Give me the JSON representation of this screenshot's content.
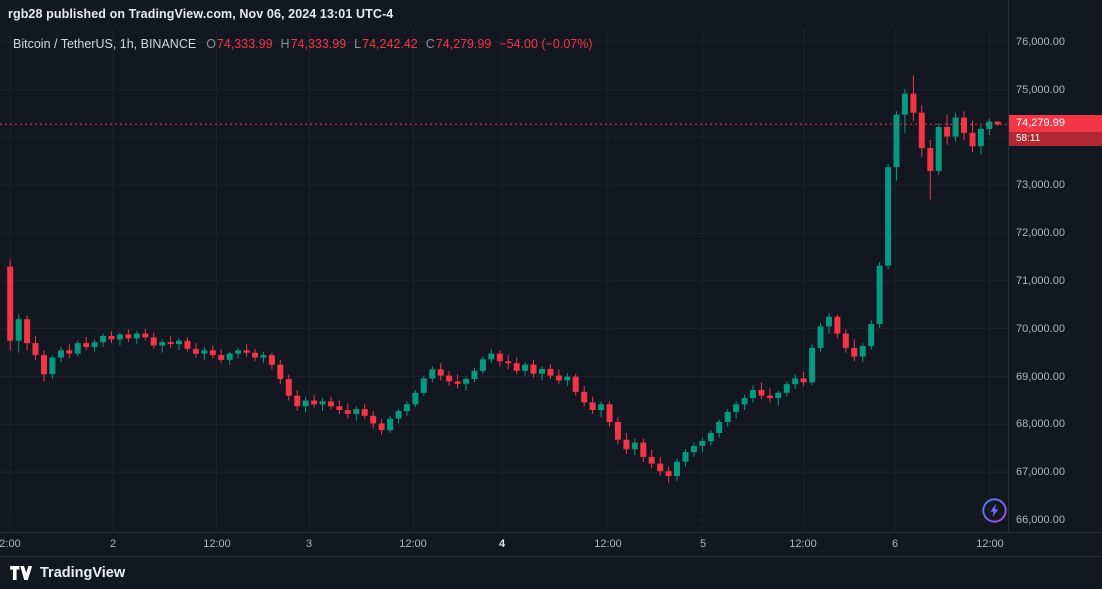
{
  "header": {
    "attribution": "rgb28 published on TradingView.com, Nov 06, 2024 13:01 UTC-4"
  },
  "legend": {
    "symbol": "Bitcoin / TetherUS, 1h, BINANCE",
    "ohlc": [
      {
        "label": "O",
        "value": "74,333.99"
      },
      {
        "label": "H",
        "value": "74,333.99"
      },
      {
        "label": "L",
        "value": "74,242.42"
      },
      {
        "label": "C",
        "value": "74,279.99"
      }
    ],
    "change": "−54.00 (−0.07%)"
  },
  "last_price": {
    "value": "74,279.99",
    "countdown": "58:11",
    "price": 74279.99
  },
  "footer": {
    "brand": "TradingView"
  },
  "colors": {
    "bg": "#131722",
    "up": "#089981",
    "down": "#f23645",
    "grid": "#1e222d",
    "axis_text": "#b2b5be",
    "accent_red": "#f23645"
  },
  "chart_data": {
    "type": "candlestick",
    "title": "Bitcoin / TetherUS, 1h, BINANCE",
    "interval": "1h",
    "exchange": "BINANCE",
    "current_bar": {
      "open": 74333.99,
      "high": 74333.99,
      "low": 74242.42,
      "close": 74279.99,
      "change": -54.0,
      "change_pct": -0.07
    },
    "last_price": 74279.99,
    "ylim": [
      65770,
      76250
    ],
    "y_ticks": [
      {
        "price": 76000,
        "label": "76,000.00"
      },
      {
        "price": 75000,
        "label": "75,000.00"
      },
      {
        "price": 74000,
        "label": "74,000.00"
      },
      {
        "price": 73000,
        "label": "73,000.00"
      },
      {
        "price": 72000,
        "label": "72,000.00"
      },
      {
        "price": 71000,
        "label": "71,000.00"
      },
      {
        "price": 70000,
        "label": "70,000.00"
      },
      {
        "price": 69000,
        "label": "69,000.00"
      },
      {
        "price": 68000,
        "label": "68,000.00"
      },
      {
        "price": 67000,
        "label": "67,000.00"
      },
      {
        "price": 66000,
        "label": "66,000.00"
      }
    ],
    "x_labels": [
      {
        "label": "2:00",
        "fx": 0.01,
        "emph": false
      },
      {
        "label": "2",
        "fx": 0.112,
        "emph": false
      },
      {
        "label": "12:00",
        "fx": 0.215,
        "emph": false
      },
      {
        "label": "3",
        "fx": 0.307,
        "emph": false
      },
      {
        "label": "12:00",
        "fx": 0.41,
        "emph": false
      },
      {
        "label": "4",
        "fx": 0.498,
        "emph": true
      },
      {
        "label": "12:00",
        "fx": 0.603,
        "emph": false
      },
      {
        "label": "5",
        "fx": 0.697,
        "emph": false
      },
      {
        "label": "12:00",
        "fx": 0.797,
        "emph": false
      },
      {
        "label": "6",
        "fx": 0.888,
        "emph": false
      },
      {
        "label": "12:00",
        "fx": 0.982,
        "emph": false
      }
    ],
    "candles": [
      [
        71300,
        71450,
        69550,
        69750
      ],
      [
        69750,
        70300,
        69500,
        70200
      ],
      [
        70200,
        70280,
        69550,
        69700
      ],
      [
        69700,
        69850,
        69350,
        69450
      ],
      [
        69450,
        69550,
        68900,
        69050
      ],
      [
        69050,
        69450,
        68950,
        69400
      ],
      [
        69400,
        69620,
        69300,
        69550
      ],
      [
        69550,
        69680,
        69380,
        69480
      ],
      [
        69480,
        69750,
        69420,
        69700
      ],
      [
        69700,
        69820,
        69550,
        69620
      ],
      [
        69620,
        69780,
        69520,
        69720
      ],
      [
        69720,
        69900,
        69620,
        69850
      ],
      [
        69850,
        69950,
        69700,
        69780
      ],
      [
        69780,
        69920,
        69650,
        69880
      ],
      [
        69880,
        69980,
        69720,
        69800
      ],
      [
        69800,
        69950,
        69680,
        69900
      ],
      [
        69900,
        70000,
        69750,
        69820
      ],
      [
        69820,
        69920,
        69580,
        69650
      ],
      [
        69650,
        69780,
        69500,
        69720
      ],
      [
        69720,
        69850,
        69600,
        69680
      ],
      [
        69680,
        69800,
        69550,
        69750
      ],
      [
        69750,
        69820,
        69520,
        69580
      ],
      [
        69580,
        69700,
        69400,
        69480
      ],
      [
        69480,
        69620,
        69350,
        69550
      ],
      [
        69550,
        69650,
        69380,
        69450
      ],
      [
        69450,
        69580,
        69280,
        69350
      ],
      [
        69350,
        69520,
        69250,
        69480
      ],
      [
        69480,
        69600,
        69380,
        69550
      ],
      [
        69550,
        69680,
        69420,
        69500
      ],
      [
        69500,
        69580,
        69320,
        69400
      ],
      [
        69400,
        69520,
        69280,
        69450
      ],
      [
        69450,
        69500,
        69150,
        69250
      ],
      [
        69250,
        69350,
        68850,
        68950
      ],
      [
        68950,
        69050,
        68500,
        68600
      ],
      [
        68600,
        68720,
        68280,
        68380
      ],
      [
        68380,
        68580,
        68250,
        68500
      ],
      [
        68500,
        68620,
        68350,
        68420
      ],
      [
        68420,
        68550,
        68280,
        68480
      ],
      [
        68480,
        68580,
        68320,
        68380
      ],
      [
        68380,
        68500,
        68220,
        68300
      ],
      [
        68300,
        68440,
        68120,
        68220
      ],
      [
        68220,
        68380,
        68080,
        68320
      ],
      [
        68320,
        68420,
        68120,
        68180
      ],
      [
        68180,
        68280,
        67920,
        68020
      ],
      [
        68020,
        68120,
        67780,
        67880
      ],
      [
        67880,
        68180,
        67820,
        68120
      ],
      [
        68120,
        68320,
        68020,
        68280
      ],
      [
        68280,
        68480,
        68180,
        68420
      ],
      [
        68420,
        68720,
        68360,
        68660
      ],
      [
        68660,
        69020,
        68600,
        68960
      ],
      [
        68960,
        69220,
        68880,
        69150
      ],
      [
        69150,
        69280,
        68920,
        69020
      ],
      [
        69020,
        69120,
        68800,
        68900
      ],
      [
        68900,
        69050,
        68750,
        68850
      ],
      [
        68850,
        69000,
        68700,
        68950
      ],
      [
        68950,
        69180,
        68880,
        69120
      ],
      [
        69120,
        69420,
        69060,
        69360
      ],
      [
        69360,
        69580,
        69280,
        69480
      ],
      [
        69480,
        69550,
        69220,
        69320
      ],
      [
        69320,
        69450,
        69150,
        69280
      ],
      [
        69280,
        69400,
        69050,
        69120
      ],
      [
        69120,
        69300,
        69020,
        69250
      ],
      [
        69250,
        69350,
        68980,
        69060
      ],
      [
        69060,
        69220,
        68920,
        69160
      ],
      [
        69160,
        69260,
        68950,
        69020
      ],
      [
        69020,
        69150,
        68850,
        68920
      ],
      [
        68920,
        69080,
        68800,
        69000
      ],
      [
        69000,
        69060,
        68600,
        68680
      ],
      [
        68680,
        68800,
        68380,
        68460
      ],
      [
        68460,
        68580,
        68220,
        68300
      ],
      [
        68300,
        68480,
        68150,
        68420
      ],
      [
        68420,
        68480,
        67950,
        68050
      ],
      [
        68050,
        68150,
        67580,
        67680
      ],
      [
        67680,
        67820,
        67380,
        67480
      ],
      [
        67480,
        67700,
        67350,
        67620
      ],
      [
        67620,
        67700,
        67220,
        67320
      ],
      [
        67320,
        67480,
        67080,
        67180
      ],
      [
        67180,
        67320,
        66920,
        67020
      ],
      [
        67020,
        67120,
        66780,
        66920
      ],
      [
        66920,
        67280,
        66820,
        67220
      ],
      [
        67220,
        67480,
        67120,
        67420
      ],
      [
        67420,
        67620,
        67320,
        67550
      ],
      [
        67550,
        67720,
        67420,
        67650
      ],
      [
        67650,
        67880,
        67550,
        67820
      ],
      [
        67820,
        68100,
        67720,
        68050
      ],
      [
        68050,
        68320,
        67950,
        68260
      ],
      [
        68260,
        68480,
        68120,
        68420
      ],
      [
        68420,
        68620,
        68300,
        68550
      ],
      [
        68550,
        68820,
        68450,
        68720
      ],
      [
        68720,
        68880,
        68520,
        68600
      ],
      [
        68600,
        68750,
        68450,
        68550
      ],
      [
        68550,
        68700,
        68400,
        68660
      ],
      [
        68660,
        68900,
        68580,
        68840
      ],
      [
        68840,
        69050,
        68740,
        68960
      ],
      [
        68960,
        69100,
        68800,
        68880
      ],
      [
        68880,
        69680,
        68820,
        69600
      ],
      [
        69600,
        70120,
        69520,
        70050
      ],
      [
        70050,
        70330,
        69900,
        70250
      ],
      [
        70250,
        70300,
        69800,
        69900
      ],
      [
        69900,
        70000,
        69500,
        69600
      ],
      [
        69600,
        69780,
        69320,
        69420
      ],
      [
        69420,
        69700,
        69300,
        69640
      ],
      [
        69640,
        70180,
        69560,
        70100
      ],
      [
        70100,
        71400,
        70020,
        71320
      ],
      [
        71320,
        73450,
        71250,
        73380
      ],
      [
        73380,
        74550,
        73100,
        74480
      ],
      [
        74480,
        75020,
        74100,
        74920
      ],
      [
        74920,
        75300,
        74350,
        74520
      ],
      [
        74520,
        74680,
        73600,
        73780
      ],
      [
        73780,
        73950,
        72700,
        73300
      ],
      [
        73300,
        74300,
        73220,
        74220
      ],
      [
        74220,
        74480,
        73850,
        74020
      ],
      [
        74020,
        74520,
        73920,
        74420
      ],
      [
        74420,
        74550,
        73950,
        74100
      ],
      [
        74100,
        74350,
        73700,
        73820
      ],
      [
        73820,
        74250,
        73650,
        74180
      ],
      [
        74180,
        74400,
        74050,
        74334
      ],
      [
        74334,
        74334,
        74242,
        74280
      ]
    ]
  }
}
